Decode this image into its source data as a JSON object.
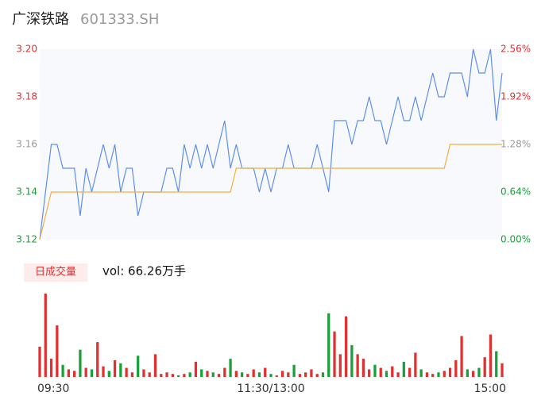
{
  "header": {
    "name": "广深铁路",
    "code": "601333.SH"
  },
  "chart_data": {
    "type": "line",
    "xlim": [
      0,
      80
    ],
    "xticks": [
      {
        "value": 0,
        "label": "09:30"
      },
      {
        "value": 40,
        "label": "11:30/13:00"
      },
      {
        "value": 80,
        "label": "15:00"
      }
    ],
    "ylim": [
      3.12,
      3.2
    ],
    "yticks": [
      {
        "value": 3.12,
        "label": "3.12"
      },
      {
        "value": 3.14,
        "label": "3.14"
      },
      {
        "value": 3.16,
        "label": "3.16"
      },
      {
        "value": 3.18,
        "label": "3.18"
      },
      {
        "value": 3.2,
        "label": "3.20"
      }
    ],
    "ytick_colors": [
      "#1aa03a",
      "#1aa03a",
      "#999999",
      "#e0302f",
      "#e0302f"
    ],
    "y2lim": [
      0,
      2.56
    ],
    "y2ticks": [
      {
        "value": 0,
        "label": "0.00%"
      },
      {
        "value": 0.64,
        "label": "0.64%"
      },
      {
        "value": 1.28,
        "label": "1.28%"
      },
      {
        "value": 1.92,
        "label": "1.92%"
      },
      {
        "value": 2.56,
        "label": "2.56%"
      }
    ],
    "series": [
      {
        "name": "price",
        "color": "#5b8ff0",
        "values": [
          3.12,
          3.14,
          3.16,
          3.16,
          3.15,
          3.15,
          3.15,
          3.13,
          3.15,
          3.14,
          3.15,
          3.16,
          3.15,
          3.16,
          3.14,
          3.15,
          3.15,
          3.13,
          3.14,
          3.14,
          3.14,
          3.14,
          3.15,
          3.15,
          3.14,
          3.16,
          3.15,
          3.16,
          3.15,
          3.16,
          3.15,
          3.16,
          3.17,
          3.15,
          3.16,
          3.15,
          3.15,
          3.15,
          3.14,
          3.15,
          3.14,
          3.15,
          3.15,
          3.16,
          3.15,
          3.15,
          3.15,
          3.15,
          3.16,
          3.15,
          3.14,
          3.17,
          3.17,
          3.17,
          3.16,
          3.17,
          3.17,
          3.18,
          3.17,
          3.17,
          3.16,
          3.17,
          3.18,
          3.17,
          3.17,
          3.18,
          3.17,
          3.18,
          3.19,
          3.18,
          3.18,
          3.19,
          3.19,
          3.19,
          3.18,
          3.2,
          3.19,
          3.19,
          3.2,
          3.17,
          3.19
        ]
      },
      {
        "name": "average",
        "color": "#f0b040",
        "values": [
          3.12,
          3.13,
          3.14,
          3.14,
          3.14,
          3.14,
          3.14,
          3.14,
          3.14,
          3.14,
          3.14,
          3.14,
          3.14,
          3.14,
          3.14,
          3.14,
          3.14,
          3.14,
          3.14,
          3.14,
          3.14,
          3.14,
          3.14,
          3.14,
          3.14,
          3.14,
          3.14,
          3.14,
          3.14,
          3.14,
          3.14,
          3.14,
          3.14,
          3.14,
          3.15,
          3.15,
          3.15,
          3.15,
          3.15,
          3.15,
          3.15,
          3.15,
          3.15,
          3.15,
          3.15,
          3.15,
          3.15,
          3.15,
          3.15,
          3.15,
          3.15,
          3.15,
          3.15,
          3.15,
          3.15,
          3.15,
          3.15,
          3.15,
          3.15,
          3.15,
          3.15,
          3.15,
          3.15,
          3.15,
          3.15,
          3.15,
          3.15,
          3.15,
          3.15,
          3.15,
          3.15,
          3.16,
          3.16,
          3.16,
          3.16,
          3.16,
          3.16,
          3.16,
          3.16,
          3.16,
          3.16
        ]
      }
    ],
    "volume": {
      "title": "日成交量",
      "label": "vol: 66.26万手",
      "up_color": "#e0302f",
      "down_color": "#1aa03a",
      "values": [
        2.0,
        5.5,
        1.2,
        3.4,
        0.8,
        0.5,
        0.4,
        1.8,
        0.6,
        0.5,
        2.3,
        0.7,
        0.4,
        1.1,
        0.9,
        0.6,
        0.3,
        1.4,
        0.5,
        0.3,
        1.5,
        0.2,
        0.3,
        0.2,
        0.1,
        0.2,
        0.3,
        1.0,
        0.5,
        0.4,
        0.3,
        0.2,
        0.6,
        1.2,
        0.4,
        0.3,
        0.2,
        0.5,
        0.3,
        0.6,
        0.2,
        0.1,
        0.4,
        0.3,
        0.8,
        0.2,
        0.3,
        0.5,
        0.2,
        0.3,
        4.2,
        3.0,
        1.5,
        4.0,
        2.1,
        1.5,
        1.2,
        0.5,
        0.8,
        0.6,
        0.4,
        0.7,
        0.3,
        1.0,
        0.6,
        1.6,
        0.5,
        0.3,
        0.2,
        0.3,
        0.4,
        0.6,
        1.1,
        2.7,
        0.5,
        0.4,
        0.6,
        1.3,
        2.8,
        1.7,
        0.9
      ]
    }
  }
}
